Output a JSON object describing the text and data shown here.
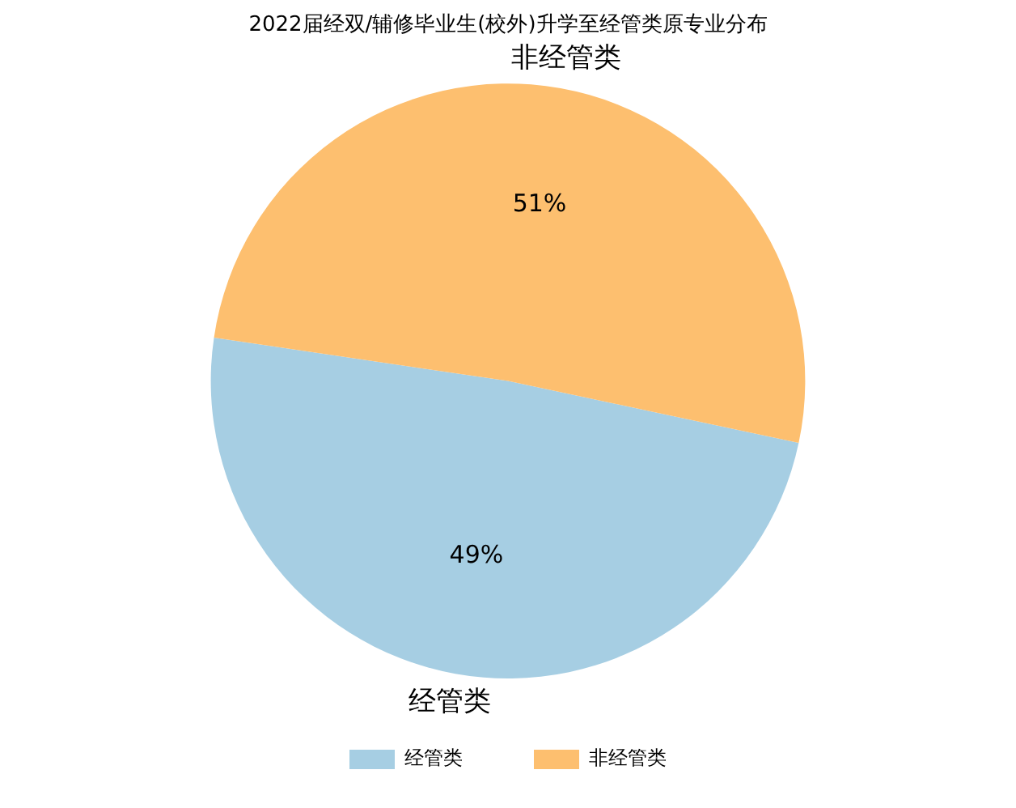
{
  "chart_data": {
    "type": "pie",
    "title": "2022届经双/辅修毕业生(校外)升学至经管类原专业分布",
    "categories": [
      "经管类",
      "非经管类"
    ],
    "values": [
      49,
      51
    ],
    "value_labels": [
      "49%",
      "51%"
    ],
    "colors": [
      "#a6cee3",
      "#fdbf6f"
    ],
    "legend": "bottom"
  }
}
